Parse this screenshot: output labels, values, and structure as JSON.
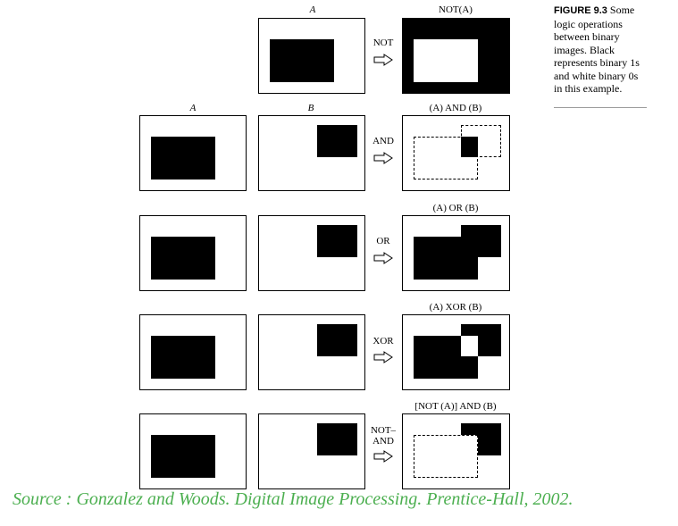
{
  "figure": {
    "caption_label": "FIGURE 9.3",
    "caption_text": "Some logic operations between binary images. Black represents binary 1s and white binary 0s in this example."
  },
  "rows": [
    {
      "op": "NOT",
      "op2": "",
      "result_label": "NOT(A)"
    },
    {
      "op": "AND",
      "op2": "",
      "result_label": "(A) AND (B)"
    },
    {
      "op": "OR",
      "op2": "",
      "result_label": "(A) OR (B)"
    },
    {
      "op": "XOR",
      "op2": "",
      "result_label": "(A) XOR (B)"
    },
    {
      "op": "NOT–",
      "op2": "AND",
      "result_label": "[NOT (A)] AND (B)"
    }
  ],
  "labels": {
    "a_top": "A",
    "a_left": "A",
    "b": "B"
  },
  "source": "Source : Gonzalez and Woods. Digital Image Processing. Prentice-Hall, 2002."
}
